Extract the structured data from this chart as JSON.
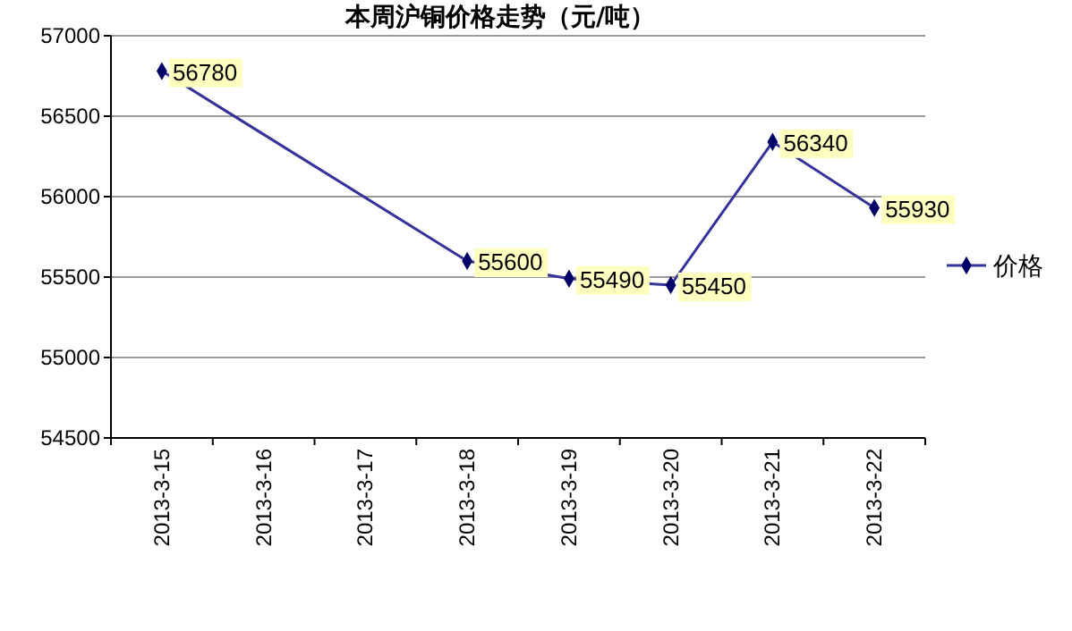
{
  "chart_data": {
    "type": "line",
    "title": "本周沪铜价格走势（元/吨）",
    "categories": [
      "2013-3-15",
      "2013-3-16",
      "2013-3-17",
      "2013-3-18",
      "2013-3-19",
      "2013-3-20",
      "2013-3-21",
      "2013-3-22"
    ],
    "series": [
      {
        "name": "价格",
        "color": "#333399",
        "values": [
          56780,
          null,
          null,
          55600,
          55490,
          55450,
          56340,
          55930
        ]
      }
    ],
    "ylim": [
      54500,
      57000
    ],
    "yticks": [
      54500,
      55000,
      55500,
      56000,
      56500,
      57000
    ],
    "grid": "y",
    "legend": "right",
    "marker": "diamond",
    "line_style": "solid",
    "data_labels": true
  }
}
